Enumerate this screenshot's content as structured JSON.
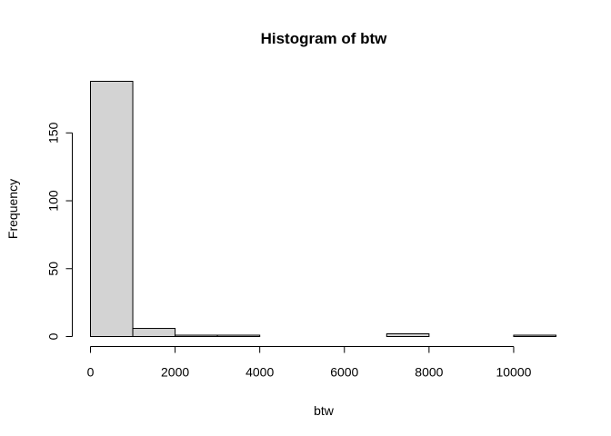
{
  "chart_data": {
    "type": "bar",
    "title": "Histogram of btw",
    "xlabel": "btw",
    "ylabel": "Frequency",
    "bin_edges": [
      0,
      1000,
      2000,
      3000,
      4000,
      5000,
      6000,
      7000,
      8000,
      9000,
      10000,
      11000
    ],
    "values": [
      188,
      6,
      1,
      1,
      0,
      0,
      0,
      2,
      0,
      0,
      1
    ],
    "xlim": [
      0,
      11000
    ],
    "ylim": [
      0,
      188
    ],
    "x_ticks": [
      0,
      2000,
      4000,
      6000,
      8000,
      10000
    ],
    "x_tick_labels": [
      "0",
      "2000",
      "4000",
      "6000",
      "8000",
      "10000"
    ],
    "y_ticks": [
      0,
      50,
      100,
      150
    ],
    "y_tick_labels": [
      "0",
      "50",
      "100",
      "150"
    ],
    "grid": false,
    "colors": {
      "bar_fill": "#d3d3d3",
      "bar_stroke": "#000000"
    }
  }
}
